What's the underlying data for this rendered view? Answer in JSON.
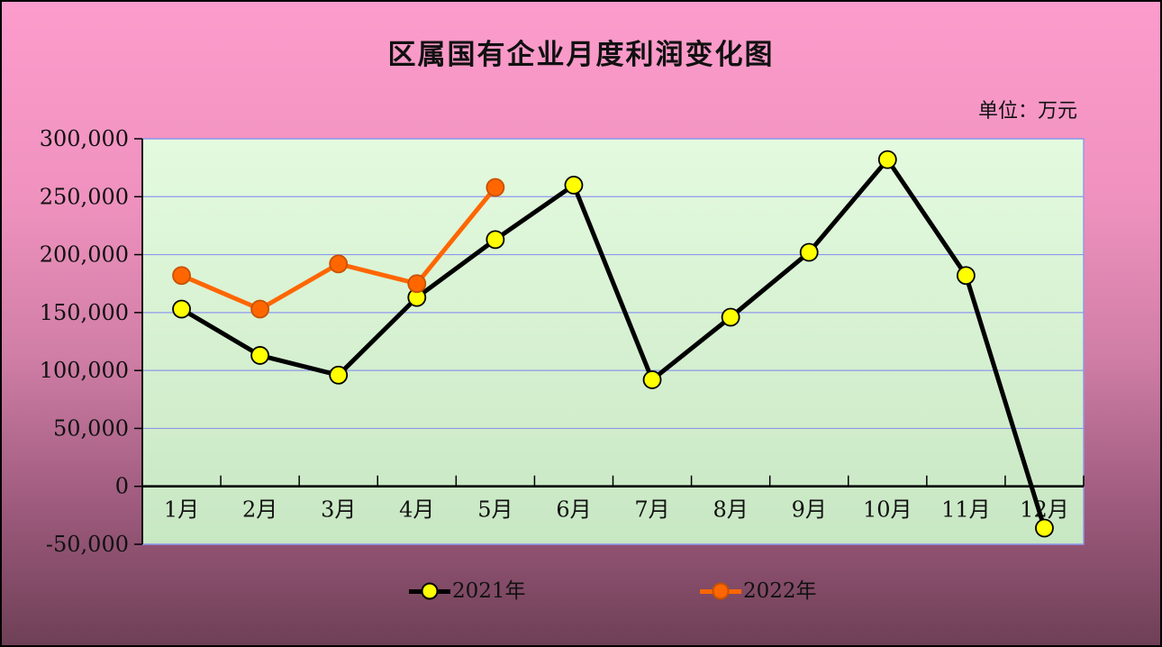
{
  "title": "区属国有企业月度利润变化图",
  "unit_label": "单位：万元",
  "chart_data": {
    "type": "line",
    "title": "区属国有企业月度利润变化图",
    "unit": "万元",
    "categories": [
      "1月",
      "2月",
      "3月",
      "4月",
      "5月",
      "6月",
      "7月",
      "8月",
      "9月",
      "10月",
      "11月",
      "12月"
    ],
    "series": [
      {
        "name": "2021年",
        "line_color": "#000000",
        "marker_color": "#FFFF00",
        "marker_stroke": "#000000",
        "values": [
          153000,
          113000,
          96000,
          163000,
          213000,
          260000,
          92000,
          146000,
          202000,
          282000,
          182000,
          -36000
        ]
      },
      {
        "name": "2022年",
        "line_color": "#FF6600",
        "marker_color": "#FF6600",
        "marker_stroke": "#C65200",
        "values": [
          182000,
          153000,
          192000,
          175000,
          258000,
          null,
          null,
          null,
          null,
          null,
          null,
          null
        ]
      }
    ],
    "ylim": [
      -50000,
      300000
    ],
    "ytick_interval": 50000,
    "ytick_labels_top_to_bottom": [
      "300,000",
      "250,000",
      "200,000",
      "150,000",
      "100,000",
      "50,000",
      "0",
      "-50,000"
    ],
    "grid": true,
    "legend_position": "bottom"
  },
  "colors": {
    "background_top": "#FC9CCC",
    "background_bottom": "#6E4056",
    "plot_top": "#E4FADF",
    "plot_bottom": "#C8E7C3",
    "gridline": "#8F97EC",
    "axis": "#000000",
    "text": "#111111"
  }
}
